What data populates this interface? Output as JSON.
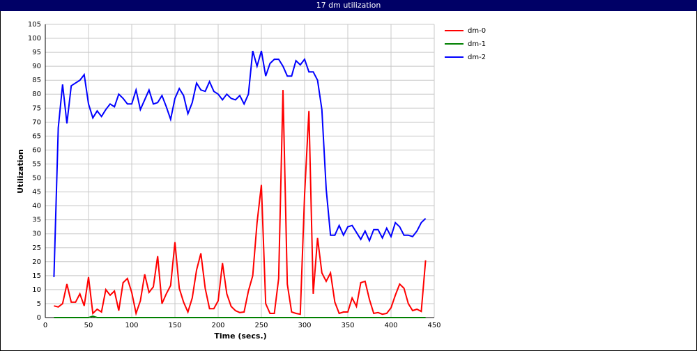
{
  "chart_data": {
    "type": "line",
    "title": "17 dm utilization",
    "x_label": "Time (secs.)",
    "y_label": "Utilization",
    "xlim": [
      0,
      450
    ],
    "xticks": [
      0,
      50,
      100,
      150,
      200,
      250,
      300,
      350,
      400,
      450
    ],
    "ylim": [
      0,
      105
    ],
    "yticks": [
      0,
      5,
      10,
      15,
      20,
      25,
      30,
      35,
      40,
      45,
      50,
      55,
      60,
      65,
      70,
      75,
      80,
      85,
      90,
      95,
      100,
      105
    ],
    "grid": true,
    "legend": "right",
    "x": [
      10,
      15,
      20,
      25,
      30,
      35,
      40,
      45,
      50,
      55,
      60,
      65,
      70,
      75,
      80,
      85,
      90,
      95,
      100,
      105,
      110,
      115,
      120,
      125,
      130,
      135,
      140,
      145,
      150,
      155,
      160,
      165,
      170,
      175,
      180,
      185,
      190,
      195,
      200,
      205,
      210,
      215,
      220,
      225,
      230,
      235,
      240,
      245,
      250,
      255,
      260,
      265,
      270,
      275,
      280,
      285,
      290,
      295,
      300,
      305,
      310,
      315,
      320,
      325,
      330,
      335,
      340,
      345,
      350,
      355,
      360,
      365,
      370,
      375,
      380,
      385,
      390,
      395,
      400,
      405,
      410,
      415,
      420,
      425,
      430,
      435,
      440
    ],
    "series": [
      {
        "name": "dm-0",
        "color": "#ff0000",
        "values": [
          4.2,
          3.8,
          5,
          12,
          5.5,
          5.5,
          8.5,
          4.2,
          14.5,
          1.5,
          3,
          2,
          10,
          8,
          9.5,
          2.5,
          12.5,
          14,
          9,
          1.5,
          6,
          15.5,
          9,
          11,
          22,
          5,
          8.5,
          11.5,
          27,
          10.5,
          5.5,
          2,
          7,
          17,
          23,
          10.5,
          3.2,
          3.2,
          6,
          19.5,
          8.5,
          4,
          2.5,
          1.8,
          2,
          9.5,
          15,
          34,
          47.5,
          5,
          1.5,
          1.5,
          14,
          81.5,
          12,
          2,
          1.5,
          1.2,
          44,
          74,
          8.5,
          28.5,
          16,
          13,
          16,
          5.5,
          1.5,
          2,
          2,
          7,
          4,
          12.5,
          13,
          6.5,
          1.5,
          1.8,
          1.2,
          1.5,
          3.5,
          8,
          12,
          10.5,
          5,
          2.5,
          3,
          2.2,
          20.5
        ]
      },
      {
        "name": "dm-1",
        "color": "#008000",
        "values": [
          0,
          0,
          0,
          0,
          0,
          0,
          0,
          0,
          0,
          0.5,
          0,
          0,
          0,
          0,
          0,
          0,
          0,
          0,
          0,
          0,
          0,
          0,
          0,
          0,
          0,
          0,
          0,
          0,
          0,
          0,
          0,
          0,
          0,
          0,
          0,
          0,
          0,
          0,
          0,
          0,
          0,
          0,
          0,
          0,
          0,
          0,
          0,
          0,
          0,
          0,
          0,
          0,
          0,
          0,
          0,
          0,
          0,
          0,
          0,
          0,
          0,
          0,
          0,
          0,
          0,
          0,
          0,
          0,
          0,
          0,
          0,
          0,
          0,
          0,
          0,
          0,
          0,
          0,
          0,
          0,
          0,
          0,
          0,
          0,
          0,
          0,
          0
        ]
      },
      {
        "name": "dm-2",
        "color": "#0000ff",
        "values": [
          14.5,
          68,
          83.5,
          69.5,
          83,
          84,
          85,
          87,
          76.5,
          71.5,
          74,
          72,
          74.5,
          76.5,
          75.5,
          80,
          78.5,
          76.5,
          76.5,
          81.5,
          74.5,
          78,
          81.5,
          76.5,
          77,
          79.5,
          75.5,
          71,
          78.5,
          82,
          79.5,
          73,
          77,
          84,
          81.5,
          81,
          84.5,
          81,
          80,
          78,
          80,
          78.5,
          78,
          79.5,
          76.5,
          80,
          95.5,
          90,
          95.5,
          86.5,
          91,
          92.5,
          92.5,
          90,
          86.5,
          86.5,
          92,
          90.5,
          92.5,
          88,
          88,
          85,
          74.5,
          46,
          29.5,
          29.5,
          33,
          29.5,
          32.5,
          33,
          30.5,
          28,
          31,
          27.5,
          31.5,
          31.5,
          28.5,
          32,
          29,
          34,
          32.5,
          29.5,
          29.5,
          29,
          31,
          34,
          35.5
        ]
      }
    ]
  }
}
